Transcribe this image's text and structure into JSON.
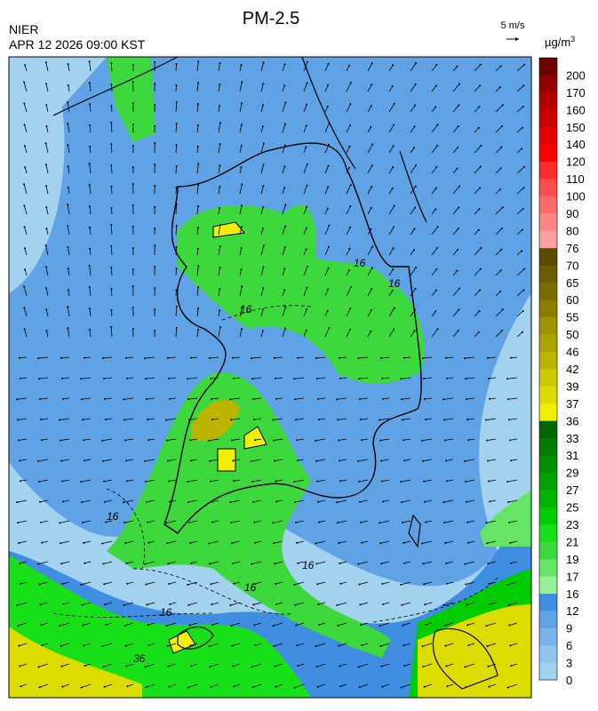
{
  "header": {
    "title": "PM-2.5",
    "agency": "NIER",
    "timestamp": "APR 12 2026 09:00 KST"
  },
  "wind_scale": {
    "label": "5 m/s"
  },
  "colorbar": {
    "unit": "µg/m",
    "unit_power": "3",
    "levels": [
      0,
      3,
      6,
      9,
      12,
      16,
      17,
      19,
      21,
      23,
      25,
      27,
      29,
      31,
      33,
      36,
      37,
      39,
      42,
      46,
      50,
      55,
      60,
      65,
      70,
      76,
      80,
      90,
      100,
      110,
      120,
      140,
      150,
      160,
      170,
      200
    ],
    "colors": [
      "#a3d2ee",
      "#90c6ee",
      "#78b4ea",
      "#5fa2e6",
      "#3f8ee2",
      "#96f096",
      "#66e466",
      "#3cd83c",
      "#18e018",
      "#00cc00",
      "#00b400",
      "#00a200",
      "#008f00",
      "#007c00",
      "#006600",
      "#f0f000",
      "#dcdc00",
      "#cccc00",
      "#bcb400",
      "#aca400",
      "#9c9400",
      "#8c7c00",
      "#7c6c00",
      "#6c5c00",
      "#5c4c00",
      "#ffa0a0",
      "#ff8686",
      "#ff6a6a",
      "#ff4c4c",
      "#ff2a2a",
      "#ff0000",
      "#e40000",
      "#cc0000",
      "#b40000",
      "#940000",
      "#700000"
    ]
  },
  "contour_labels": [
    "16",
    "16",
    "16",
    "16",
    "16",
    "16",
    "16",
    "36"
  ]
}
